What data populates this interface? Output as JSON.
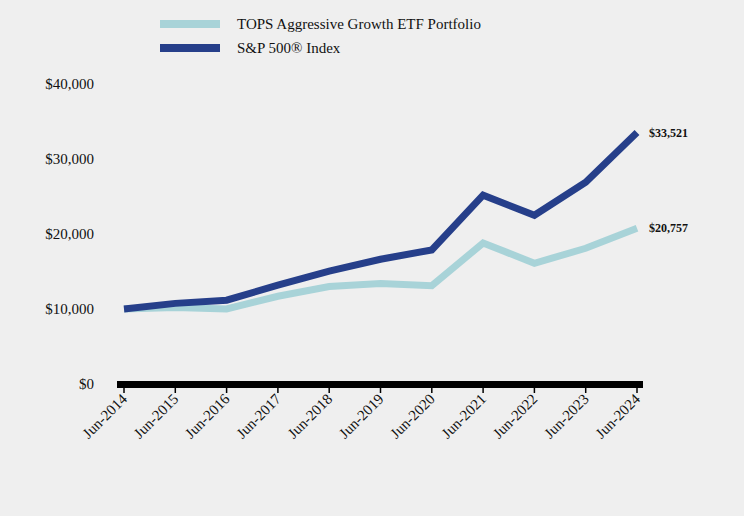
{
  "chart_data": {
    "type": "line",
    "categories": [
      "Jun-2014",
      "Jun-2015",
      "Jun-2016",
      "Jun-2017",
      "Jun-2018",
      "Jun-2019",
      "Jun-2020",
      "Jun-2021",
      "Jun-2022",
      "Jun-2023",
      "Jun-2024"
    ],
    "series": [
      {
        "name": "TOPS Aggressive Growth ETF Portfolio",
        "color": "#a8d3d8",
        "values": [
          10000,
          10200,
          10000,
          11700,
          13000,
          13400,
          13100,
          18800,
          16100,
          18100,
          20757
        ],
        "value_labels": [
          null,
          null,
          null,
          null,
          null,
          null,
          null,
          null,
          null,
          null,
          "$20,757"
        ]
      },
      {
        "name": "S&P 500® Index",
        "color": "#263f8a",
        "values": [
          10000,
          10750,
          11170,
          13170,
          15060,
          16630,
          17880,
          25170,
          22500,
          26910,
          33521
        ],
        "value_labels": [
          null,
          null,
          null,
          null,
          null,
          null,
          null,
          null,
          null,
          null,
          "$33,521"
        ]
      }
    ],
    "ylim": [
      0,
      40000
    ],
    "yticks": [
      {
        "value": 0,
        "label": "$0"
      },
      {
        "value": 10000,
        "label": "$10,000"
      },
      {
        "value": 20000,
        "label": "$20,000"
      },
      {
        "value": 30000,
        "label": "$30,000"
      },
      {
        "value": 40000,
        "label": "$40,000"
      }
    ],
    "grid": false,
    "legend": "top",
    "data_labels": true
  }
}
